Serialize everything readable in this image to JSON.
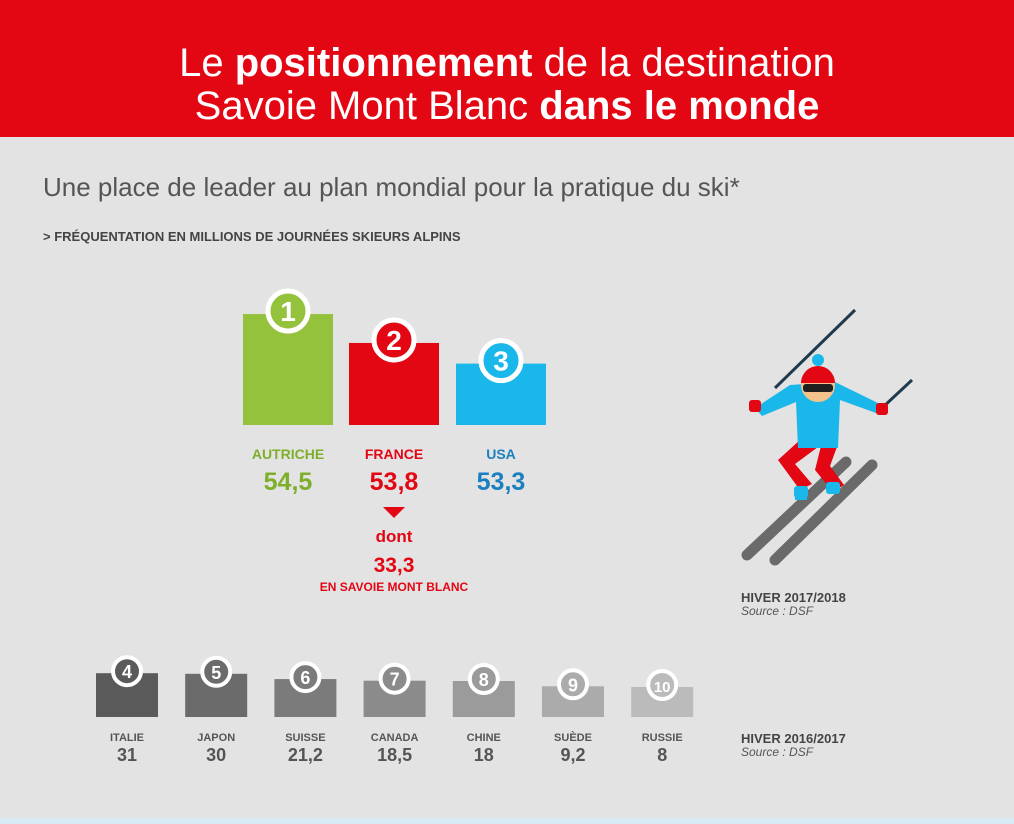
{
  "header": {
    "line1_pre": "Le ",
    "line1_bold": "positionnement",
    "line1_post": " de la destination",
    "line2_pre": "Savoie Mont Blanc ",
    "line2_bold": "dans le monde"
  },
  "subtitle": "Une place de leader au plan mondial pour la pratique du ski*",
  "kicker": "> FRÉQUENTATION EN MILLIONS DE JOURNÉES SKIEURS ALPINS",
  "colors": {
    "red": "#e30613",
    "green": "#95c23d",
    "blue": "#1ab7ea",
    "blue_text": "#1a7fc1"
  },
  "chart_data": [
    {
      "type": "bar",
      "season": "HIVER 2017/2018",
      "source": "Source : DSF",
      "categories": [
        "AUTRICHE",
        "FRANCE",
        "USA"
      ],
      "ranks": [
        "1",
        "2",
        "3"
      ],
      "values": [
        54.5,
        53.8,
        53.3
      ],
      "value_labels": [
        "54,5",
        "53,8",
        "53,3"
      ],
      "bar_colors": [
        "#95c23d",
        "#e30613",
        "#1ab7ea"
      ],
      "label_colors": [
        "#7fae2a",
        "#e30613",
        "#1a7fc1"
      ],
      "annotation": {
        "arrow_text": "dont",
        "value": "33,3",
        "text": "EN SAVOIE MONT BLANC"
      }
    },
    {
      "type": "bar",
      "season": "HIVER 2016/2017",
      "source": "Source : DSF",
      "categories": [
        "ITALIE",
        "JAPON",
        "SUISSE",
        "CANADA",
        "CHINE",
        "SUÈDE",
        "RUSSIE"
      ],
      "ranks": [
        "4",
        "5",
        "6",
        "7",
        "8",
        "9",
        "10"
      ],
      "values": [
        31,
        30,
        21.2,
        18.5,
        18,
        9.2,
        8
      ],
      "value_labels": [
        "31",
        "30",
        "21,2",
        "18,5",
        "18",
        "9,2",
        "8"
      ],
      "bar_colors": [
        "#5a5a5a",
        "#6b6b6b",
        "#7b7b7b",
        "#8b8b8b",
        "#9b9b9b",
        "#ababab",
        "#bbbbbb"
      ]
    }
  ]
}
